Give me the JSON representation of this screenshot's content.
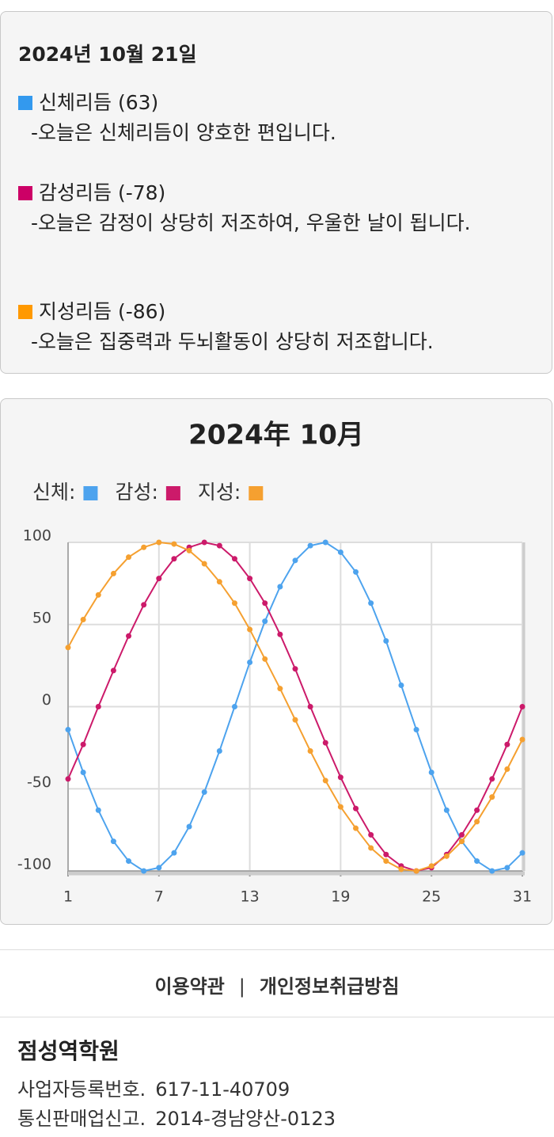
{
  "summary": {
    "date": "2024년 10월 21일",
    "items": [
      {
        "color": "#3399ee",
        "title": "신체리듬 (63)",
        "text": "-오늘은 신체리듬이 양호한 편입니다."
      },
      {
        "color": "#cc0066",
        "title": "감성리듬 (-78)",
        "text": "-오늘은 감정이 상당히 저조하여, 우울한 날이 됩니다."
      },
      {
        "color": "#ff9900",
        "title": "지성리듬 (-86)",
        "text": "-오늘은 집중력과 두뇌활동이 상당히 저조합니다."
      }
    ]
  },
  "chart_data": {
    "type": "line",
    "title": "2024年 10月",
    "x": [
      1,
      2,
      3,
      4,
      5,
      6,
      7,
      8,
      9,
      10,
      11,
      12,
      13,
      14,
      15,
      16,
      17,
      18,
      19,
      20,
      21,
      22,
      23,
      24,
      25,
      26,
      27,
      28,
      29,
      30,
      31
    ],
    "series": [
      {
        "name": "신체:",
        "color": "#4da3ee",
        "values": [
          -14,
          -40,
          -63,
          -82,
          -94,
          -100,
          -98,
          -89,
          -73,
          -52,
          -27,
          0,
          27,
          52,
          73,
          89,
          98,
          100,
          94,
          82,
          63,
          40,
          13,
          -14,
          -40,
          -63,
          -82,
          -94,
          -100,
          -98,
          -89
        ]
      },
      {
        "name": "감성:",
        "color": "#cc1a6a",
        "values": [
          -44,
          -23,
          0,
          22,
          43,
          62,
          78,
          90,
          97,
          100,
          98,
          90,
          78,
          63,
          44,
          23,
          0,
          -22,
          -43,
          -62,
          -78,
          -90,
          -97,
          -100,
          -98,
          -90,
          -78,
          -63,
          -44,
          -23,
          0
        ]
      },
      {
        "name": "지성:",
        "color": "#f5a030",
        "values": [
          36,
          53,
          68,
          81,
          91,
          97,
          100,
          99,
          95,
          87,
          76,
          63,
          47,
          29,
          11,
          -8,
          -27,
          -45,
          -61,
          -74,
          -86,
          -94,
          -99,
          -100,
          -97,
          -91,
          -82,
          -70,
          -55,
          -38,
          -20
        ]
      }
    ],
    "xlim": [
      1,
      31
    ],
    "xticks": [
      1,
      7,
      13,
      19,
      25,
      31
    ],
    "ylim": [
      -100,
      100
    ],
    "yticks": [
      100,
      50,
      0,
      -50,
      -100
    ],
    "grid": true,
    "legend": "top-left"
  },
  "footer": {
    "links": [
      "이용약관",
      "개인정보취급방침"
    ],
    "separator": "|",
    "company": "점성역학원",
    "info": [
      {
        "label": "사업자등록번호.",
        "value": "617-11-40709"
      },
      {
        "label": "통신판매업신고.",
        "value": "2014-경남양산-0123"
      }
    ]
  }
}
